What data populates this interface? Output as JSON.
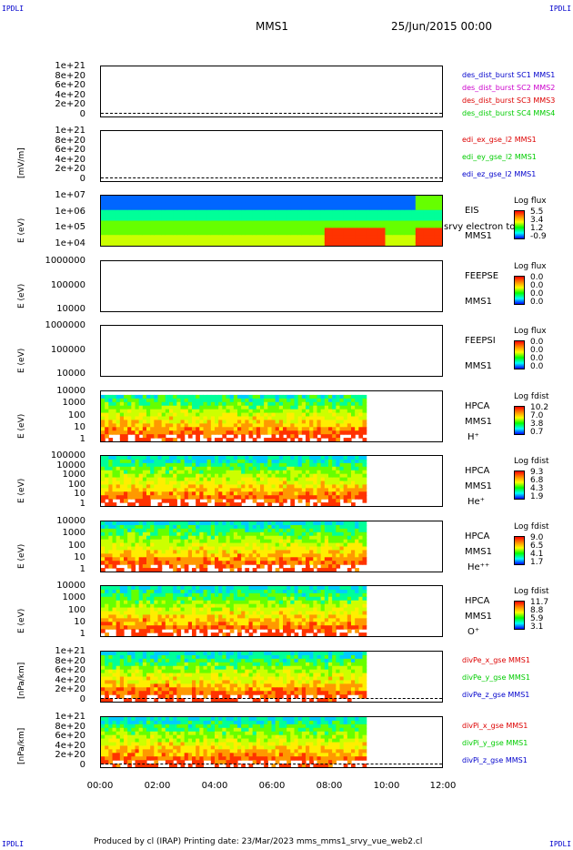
{
  "header": {
    "corner_label": "IPDLI",
    "spacecraft": "MMS1",
    "datetime": "25/Jun/2015 00:00"
  },
  "footer": {
    "text": "Produced by cl (IRAP)   Printing date: 23/Mar/2023   mms_mms1_srvy_vue_web2.cl"
  },
  "chart_data": {
    "type": "heatmap",
    "x_ticks": [
      "00:00",
      "02:00",
      "04:00",
      "06:00",
      "08:00",
      "10:00",
      "12:00"
    ],
    "panels": [
      {
        "ylabel": "",
        "ticks": [
          "1e+21",
          "8e+20",
          "6e+20",
          "4e+20",
          "2e+20",
          "0"
        ],
        "legend": [
          {
            "text": "des_dist_burst SC1 MMS1",
            "color": "#0000cc"
          },
          {
            "text": "des_dist_burst SC2 MMS2",
            "color": "#cc00cc"
          },
          {
            "text": "des_dist_burst SC3 MMS3",
            "color": "#dd0000"
          },
          {
            "text": "des_dist_burst SC4 MMS4",
            "color": "#00cc00"
          }
        ]
      },
      {
        "ylabel": "[mV/m]",
        "ticks": [
          "1e+21",
          "8e+20",
          "6e+20",
          "4e+20",
          "2e+20",
          "0"
        ],
        "legend": [
          {
            "text": "edi_ex_gse_l2 MMS1",
            "color": "#dd0000"
          },
          {
            "text": "edi_ey_gse_l2 MMS1",
            "color": "#00cc00"
          },
          {
            "text": "edi_ez_gse_l2 MMS1",
            "color": "#0000cc"
          }
        ]
      },
      {
        "ylabel": "E (eV)",
        "ticks": [
          "1e+07",
          "1e+06",
          "1e+05",
          "1e+04"
        ],
        "right_labels": [
          "EIS",
          "MMS1"
        ],
        "overlap_label": "srvy electron to",
        "cb_title": "Log flux",
        "cb_values": [
          "5.5",
          "3.4",
          "1.2",
          "-0.9"
        ]
      },
      {
        "ylabel": "E (eV)",
        "ticks": [
          "1000000",
          "100000",
          "10000"
        ],
        "right_labels": [
          "FEEPSE",
          "MMS1"
        ],
        "cb_title": "Log flux",
        "cb_values": [
          "0.0",
          "0.0",
          "0.0",
          "0.0"
        ]
      },
      {
        "ylabel": "E (eV)",
        "ticks": [
          "1000000",
          "100000",
          "10000"
        ],
        "right_labels": [
          "FEEPSI",
          "MMS1"
        ],
        "cb_title": "Log flux",
        "cb_values": [
          "0.0",
          "0.0",
          "0.0",
          "0.0"
        ]
      },
      {
        "ylabel": "E (eV)",
        "ticks": [
          "10000",
          "1000",
          "100",
          "10",
          "1"
        ],
        "right_labels": [
          "HPCA",
          "MMS1",
          "H⁺"
        ],
        "cb_title": "Log fdist",
        "cb_values": [
          "10.2",
          "7.0",
          "3.8",
          "0.7"
        ]
      },
      {
        "ylabel": "E (eV)",
        "ticks": [
          "100000",
          "10000",
          "1000",
          "100",
          "10",
          "1"
        ],
        "right_labels": [
          "HPCA",
          "MMS1",
          "He⁺"
        ],
        "cb_title": "Log fdist",
        "cb_values": [
          "9.3",
          "6.8",
          "4.3",
          "1.9"
        ]
      },
      {
        "ylabel": "E (eV)",
        "ticks": [
          "10000",
          "1000",
          "100",
          "10",
          "1"
        ],
        "right_labels": [
          "HPCA",
          "MMS1",
          "He⁺⁺"
        ],
        "cb_title": "Log fdist",
        "cb_values": [
          "9.0",
          "6.5",
          "4.1",
          "1.7"
        ]
      },
      {
        "ylabel": "E (eV)",
        "ticks": [
          "10000",
          "1000",
          "100",
          "10",
          "1"
        ],
        "right_labels": [
          "HPCA",
          "MMS1",
          "O⁺"
        ],
        "cb_title": "Log fdist",
        "cb_values": [
          "11.7",
          "8.8",
          "5.9",
          "3.1"
        ]
      },
      {
        "ylabel": "[nPa/km]",
        "ticks": [
          "1e+21",
          "8e+20",
          "6e+20",
          "4e+20",
          "2e+20",
          "0"
        ],
        "legend": [
          {
            "text": "divPe_x_gse MMS1",
            "color": "#dd0000"
          },
          {
            "text": "divPe_y_gse MMS1",
            "color": "#00cc00"
          },
          {
            "text": "divPe_z_gse MMS1",
            "color": "#0000cc"
          }
        ]
      },
      {
        "ylabel": "[nPa/km]",
        "ticks": [
          "1e+21",
          "8e+20",
          "6e+20",
          "4e+20",
          "2e+20",
          "0"
        ],
        "legend": [
          {
            "text": "divPi_x_gse MMS1",
            "color": "#dd0000"
          },
          {
            "text": "divPi_y_gse MMS1",
            "color": "#00cc00"
          },
          {
            "text": "divPi_z_gse MMS1",
            "color": "#0000cc"
          }
        ]
      }
    ]
  }
}
